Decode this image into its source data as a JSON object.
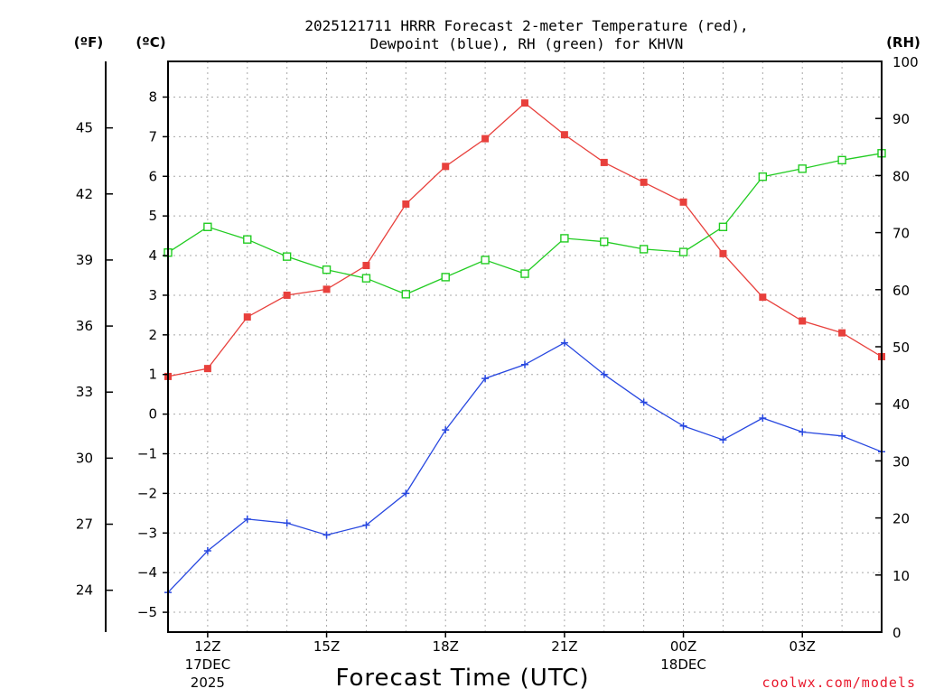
{
  "chart_data": {
    "type": "line",
    "title_line1": "2025121711 HRRR Forecast 2-meter Temperature (red),",
    "title_line2": "Dewpoint (blue), RH (green) for KHVN",
    "xlabel": "Forecast Time (UTC)",
    "unit_left_outer": "(ºF)",
    "unit_left_inner": "(ºC)",
    "unit_right": "(RH)",
    "credit": "coolwx.com/models",
    "x_hours": [
      11,
      12,
      13,
      14,
      15,
      16,
      17,
      18,
      19,
      20,
      21,
      22,
      23,
      24,
      25,
      26,
      27,
      28,
      29
    ],
    "xlim": [
      11,
      29
    ],
    "x_ticks": [
      {
        "hour": 12,
        "label": "12Z",
        "sub1": "17DEC",
        "sub2": "2025"
      },
      {
        "hour": 15,
        "label": "15Z",
        "sub1": "",
        "sub2": ""
      },
      {
        "hour": 18,
        "label": "18Z",
        "sub1": "",
        "sub2": ""
      },
      {
        "hour": 21,
        "label": "21Z",
        "sub1": "",
        "sub2": ""
      },
      {
        "hour": 24,
        "label": "00Z",
        "sub1": "18DEC",
        "sub2": ""
      },
      {
        "hour": 27,
        "label": "03Z",
        "sub1": "",
        "sub2": ""
      }
    ],
    "celsius_axis": {
      "ylim": [
        -5.5,
        8.9
      ],
      "ticks": [
        "-5",
        "-4",
        "-3",
        "-2",
        "-1",
        "0",
        "1",
        "2",
        "3",
        "4",
        "5",
        "6",
        "7",
        "8"
      ]
    },
    "fahrenheit_axis": {
      "ticks": [
        "24",
        "27",
        "30",
        "33",
        "36",
        "39",
        "42",
        "45"
      ]
    },
    "rh_axis": {
      "ylim": [
        0,
        100
      ],
      "ticks": [
        "0",
        "10",
        "20",
        "30",
        "40",
        "50",
        "60",
        "70",
        "80",
        "90",
        "100"
      ]
    },
    "series": [
      {
        "name": "Temperature",
        "unit": "C",
        "color": "#e8403c",
        "marker": "filled-square",
        "values": [
          0.95,
          1.15,
          2.45,
          3.0,
          3.15,
          3.75,
          5.3,
          6.25,
          6.95,
          7.85,
          7.05,
          6.35,
          5.85,
          5.35,
          4.05,
          2.95,
          2.35,
          2.05,
          1.45
        ]
      },
      {
        "name": "Dewpoint",
        "unit": "C",
        "color": "#2848e0",
        "marker": "plus",
        "values": [
          -4.5,
          -3.45,
          -2.65,
          -2.75,
          -3.05,
          -2.8,
          -2.0,
          -0.4,
          0.9,
          1.25,
          1.8,
          1.0,
          0.3,
          -0.3,
          -0.65,
          -0.1,
          -0.45,
          -0.55,
          -0.95
        ]
      },
      {
        "name": "RH",
        "unit": "%",
        "color": "#22cc22",
        "marker": "open-square",
        "values": [
          66.5,
          71,
          68.8,
          65.8,
          63.5,
          62,
          59.2,
          62.2,
          65.2,
          62.8,
          69,
          68.4,
          67.1,
          66.6,
          71,
          79.8,
          81.2,
          82.7,
          83.9
        ]
      }
    ]
  }
}
